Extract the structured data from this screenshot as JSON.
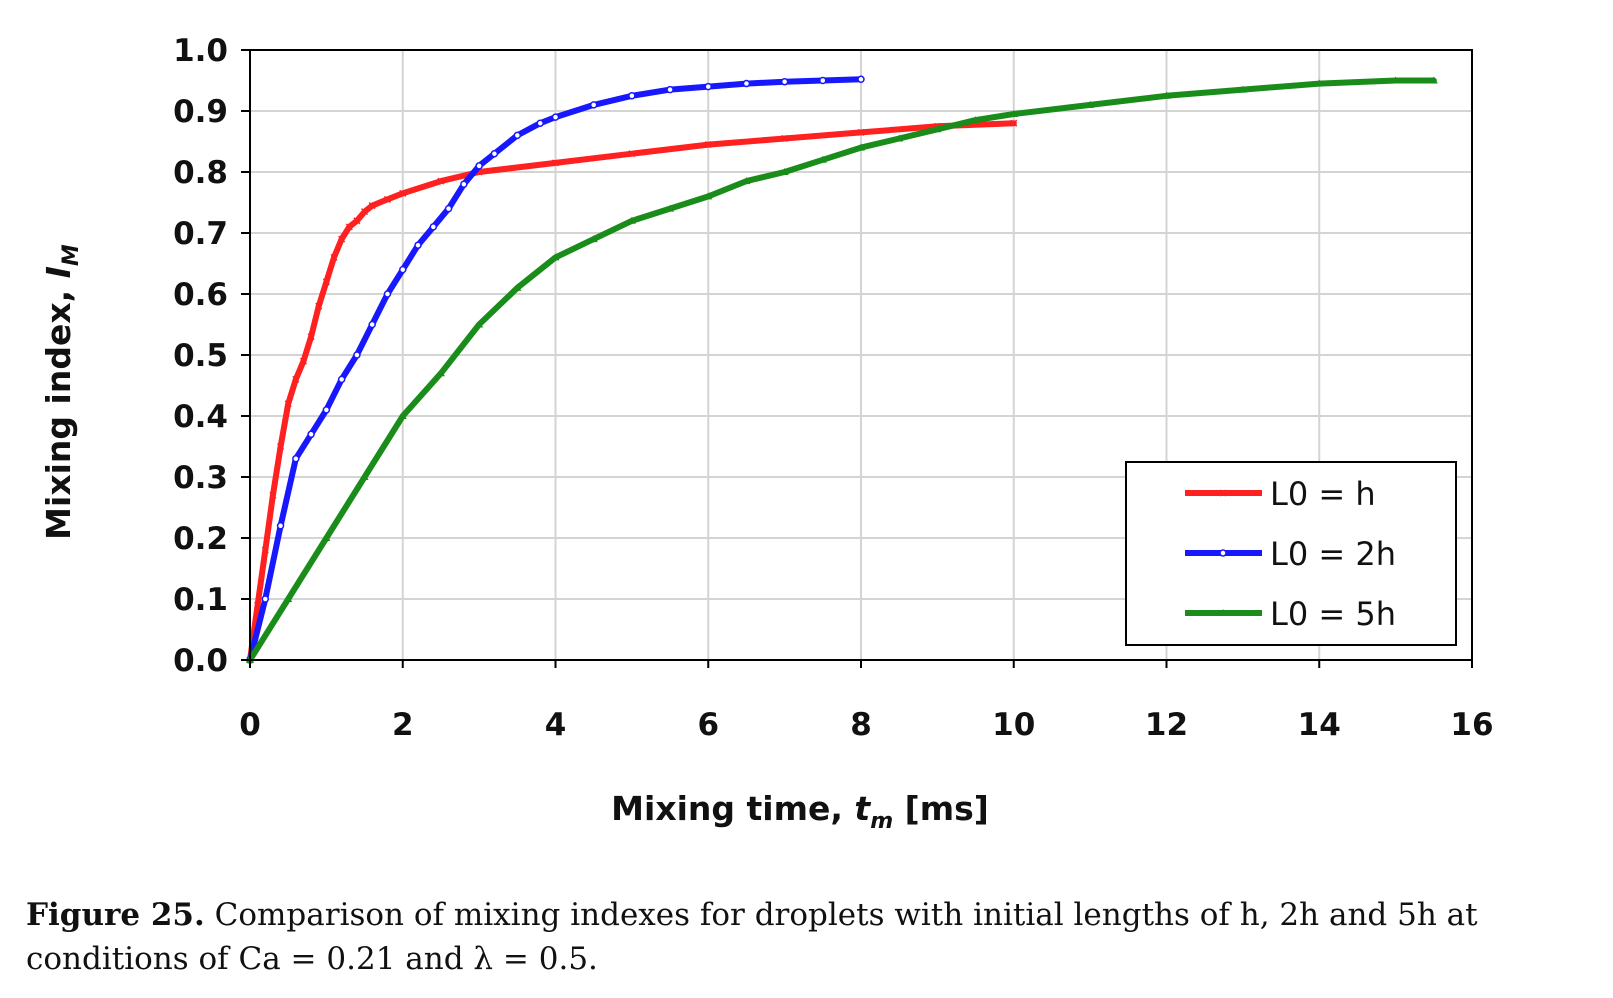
{
  "chart_data": {
    "type": "line",
    "xlabel": "Mixing time, t_m [ms]",
    "xlabel_parts": {
      "main": "Mixing time, ",
      "var": "t",
      "sub": "m",
      "unit": " [ms]"
    },
    "ylabel": "Mixing index, I_M",
    "ylabel_parts": {
      "main": "Mixing index, ",
      "var": "I",
      "sub": "M"
    },
    "xlim": [
      0,
      16
    ],
    "ylim": [
      0.0,
      1.0
    ],
    "xticks": [
      "0",
      "2",
      "4",
      "6",
      "8",
      "10",
      "12",
      "14",
      "16"
    ],
    "yticks": [
      "0.0",
      "0.1",
      "0.2",
      "0.3",
      "0.4",
      "0.5",
      "0.6",
      "0.7",
      "0.8",
      "0.9",
      "1.0"
    ],
    "grid": true,
    "legend_position": "lower-right",
    "series": [
      {
        "name": "L0 = h",
        "color": "#ff2020",
        "marker": "cross",
        "x": [
          0,
          0.1,
          0.2,
          0.3,
          0.4,
          0.5,
          0.6,
          0.7,
          0.8,
          0.9,
          1.0,
          1.1,
          1.2,
          1.3,
          1.4,
          1.5,
          1.6,
          1.8,
          2.0,
          2.5,
          3.0,
          4.0,
          5.0,
          6.0,
          7.0,
          8.0,
          9.0,
          10.0
        ],
        "values": [
          0.0,
          0.09,
          0.18,
          0.27,
          0.35,
          0.42,
          0.46,
          0.49,
          0.53,
          0.58,
          0.62,
          0.66,
          0.69,
          0.71,
          0.72,
          0.735,
          0.745,
          0.755,
          0.765,
          0.785,
          0.8,
          0.815,
          0.83,
          0.845,
          0.855,
          0.865,
          0.875,
          0.88
        ]
      },
      {
        "name": "L0 = 2h",
        "color": "#1818ff",
        "marker": "circle",
        "x": [
          0,
          0.2,
          0.4,
          0.6,
          0.8,
          1.0,
          1.2,
          1.4,
          1.6,
          1.8,
          2.0,
          2.2,
          2.4,
          2.6,
          2.8,
          3.0,
          3.2,
          3.5,
          3.8,
          4.0,
          4.5,
          5.0,
          5.5,
          6.0,
          6.5,
          7.0,
          7.5,
          8.0
        ],
        "values": [
          0.0,
          0.1,
          0.22,
          0.33,
          0.37,
          0.41,
          0.46,
          0.5,
          0.55,
          0.6,
          0.64,
          0.68,
          0.71,
          0.74,
          0.78,
          0.81,
          0.83,
          0.86,
          0.88,
          0.89,
          0.91,
          0.925,
          0.935,
          0.94,
          0.945,
          0.948,
          0.95,
          0.952
        ]
      },
      {
        "name": "L0 = 5h",
        "color": "#1a8c1a",
        "marker": "triangle",
        "x": [
          0,
          0.5,
          1.0,
          1.5,
          2.0,
          2.5,
          3.0,
          3.5,
          4.0,
          4.5,
          5.0,
          5.5,
          6.0,
          6.5,
          7.0,
          7.5,
          8.0,
          8.5,
          9.0,
          9.5,
          10.0,
          11.0,
          12.0,
          13.0,
          14.0,
          15.0,
          15.5
        ],
        "values": [
          0.0,
          0.1,
          0.2,
          0.3,
          0.4,
          0.47,
          0.55,
          0.61,
          0.66,
          0.69,
          0.72,
          0.74,
          0.76,
          0.785,
          0.8,
          0.82,
          0.84,
          0.855,
          0.87,
          0.885,
          0.895,
          0.91,
          0.925,
          0.935,
          0.945,
          0.95,
          0.95
        ]
      }
    ]
  },
  "caption": {
    "label": "Figure 25.",
    "text": "Comparison of mixing indexes for droplets with initial lengths of h, 2h and 5h at conditions of Ca = 0.21  and λ = 0.5."
  }
}
